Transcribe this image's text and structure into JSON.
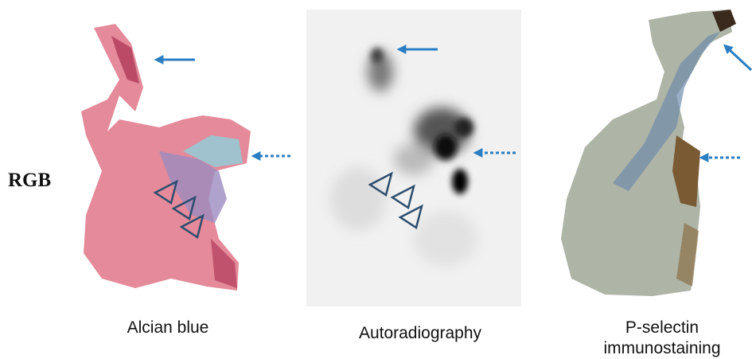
{
  "row_label": "RGB",
  "panels": [
    {
      "caption": [
        "Alcian blue"
      ]
    },
    {
      "caption": [
        "Autoradiography"
      ]
    },
    {
      "caption": [
        "P-selectin",
        "immunostaining"
      ]
    }
  ]
}
